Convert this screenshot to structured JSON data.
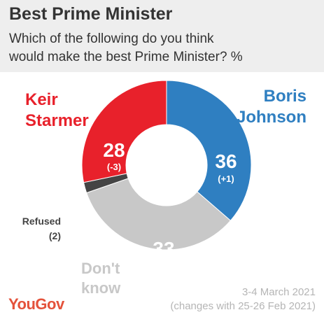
{
  "header": {
    "title": "Best Prime Minister",
    "subtitle_line1": "Which of the following do you think",
    "subtitle_line2": "would make the best Prime Minister? %"
  },
  "chart_data": {
    "type": "pie",
    "style": "donut",
    "slices": [
      {
        "name": "Boris Johnson",
        "name_lines": [
          "Boris",
          "Johnson"
        ],
        "value": 36,
        "value_label": "36",
        "change": "(+1)",
        "color": "#2f7fc1",
        "label_color": "#2f7fc1"
      },
      {
        "name": "Don't know",
        "name_lines": [
          "Don't",
          "know"
        ],
        "value": 33,
        "value_label": "33",
        "change": "",
        "color": "#c8c8c8",
        "label_color": "#c8c8c8"
      },
      {
        "name": "Refused",
        "name_lines": [
          "Refused",
          "(2)"
        ],
        "value": 2,
        "value_label": "",
        "change": "",
        "color": "#444444",
        "label_color": "#444444"
      },
      {
        "name": "Keir Starmer",
        "name_lines": [
          "Keir",
          "Starmer"
        ],
        "value": 28,
        "value_label": "28",
        "change": "(-3)",
        "color": "#e8212b",
        "label_color": "#e8212b"
      }
    ]
  },
  "footer": {
    "date_line1": "3-4 March 2021",
    "date_line2": "(changes with 25-26 Feb 2021)",
    "logo": "YouGov"
  }
}
